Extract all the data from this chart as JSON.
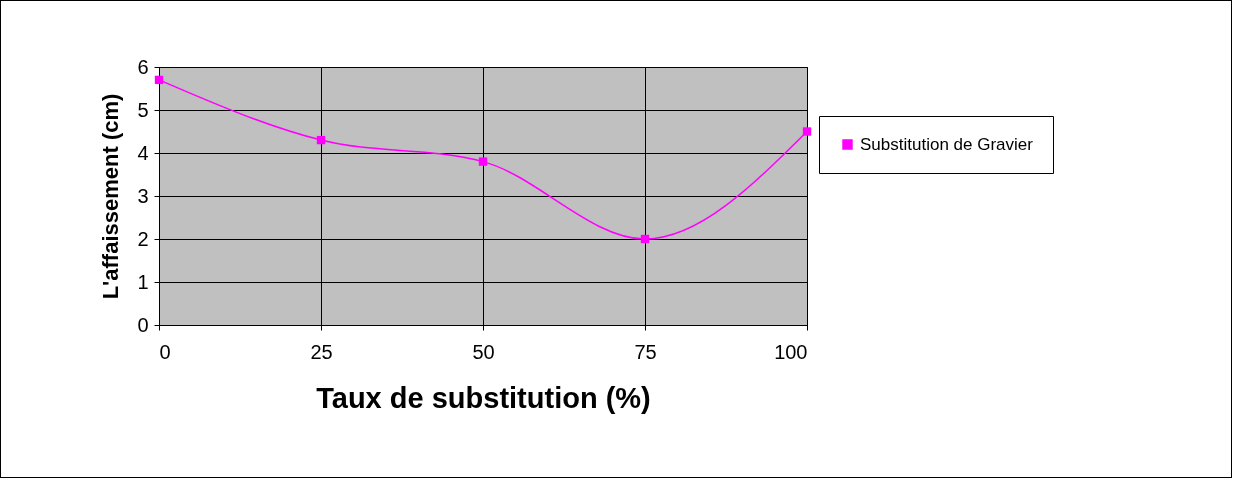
{
  "chart_data": {
    "type": "line",
    "xlabel": "Taux de substitution (%)",
    "ylabel": "L'affaissement (cm)",
    "x": [
      0,
      25,
      50,
      75,
      100
    ],
    "series": [
      {
        "name": "Substitution de Gravier",
        "color": "#ff00ff",
        "values": [
          5.7,
          4.3,
          3.8,
          2.0,
          4.5
        ]
      }
    ],
    "xlim": [
      0,
      100
    ],
    "xticks": [
      0,
      25,
      50,
      75,
      100
    ],
    "ylim": [
      0,
      6
    ],
    "yticks": [
      0,
      1,
      2,
      3,
      4,
      5,
      6
    ],
    "grid": true,
    "legend": "right",
    "marker": "square",
    "line_style": "solid"
  }
}
